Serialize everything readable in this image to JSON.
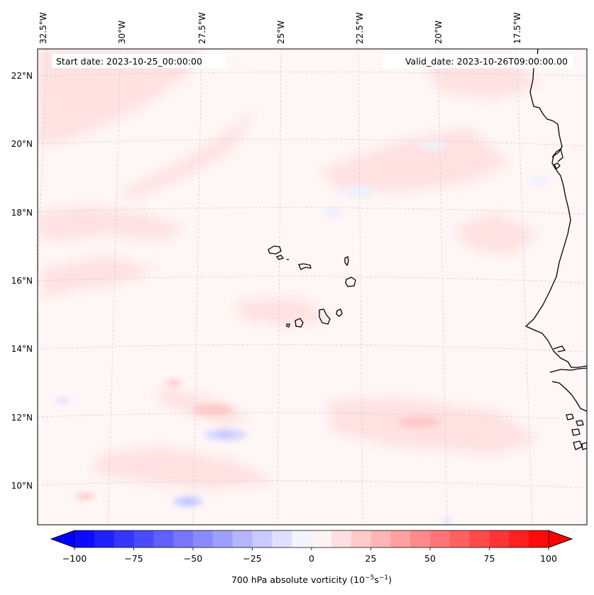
{
  "map": {
    "start_label": "Start date: 2023-10-25_00:00:00",
    "valid_label": "Valid_date: 2023-10-26T09:00:00.00",
    "longitude_labels": [
      "32.5°W",
      "30°W",
      "27.5°W",
      "25°W",
      "22.5°W",
      "20°W",
      "17.5°W"
    ],
    "latitude_labels": [
      "22°N",
      "20°N",
      "18°N",
      "16°N",
      "14°N",
      "12°N",
      "10°N"
    ]
  },
  "colorbar": {
    "title_main": "700 hPa absolute vorticity (10",
    "title_exp1": "−5",
    "title_mid": "s",
    "title_exp2": "−1",
    "title_end": ")",
    "ticks": [
      "−100",
      "−75",
      "−50",
      "−25",
      "0",
      "25",
      "50",
      "75",
      "100"
    ],
    "range": [
      -100,
      100
    ],
    "levels": 24,
    "colors": {
      "negative": "#0000ff",
      "zero": "#ffffff",
      "positive": "#ff0000"
    }
  },
  "colors": {
    "land_outline": "#000000",
    "gridline": "#c8c8c8",
    "field_background": "#fff6f6"
  }
}
